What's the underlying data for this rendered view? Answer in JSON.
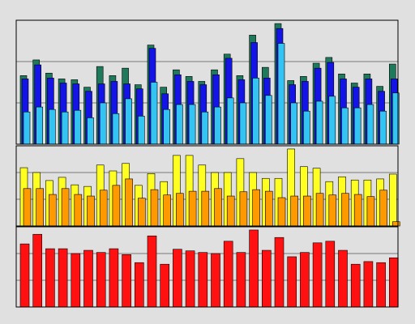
{
  "chart_data": [
    {
      "type": "bar",
      "ylim": [
        0,
        150
      ],
      "yticks": [
        0,
        50,
        100,
        150
      ],
      "grid": true,
      "series": [
        {
          "color": "#1f7a5c",
          "values": [
            83,
            102,
            86,
            79,
            78,
            69,
            94,
            83,
            92,
            72,
            120,
            69,
            90,
            82,
            76,
            90,
            109,
            83,
            132,
            93,
            146,
            77,
            82,
            98,
            105,
            85,
            74,
            85,
            70,
            97
          ]
        },
        {
          "color": "#1414e6",
          "values": [
            79,
            96,
            80,
            74,
            73,
            64,
            73,
            76,
            73,
            67,
            116,
            61,
            84,
            76,
            72,
            84,
            104,
            78,
            123,
            80,
            140,
            72,
            76,
            92,
            99,
            79,
            69,
            79,
            64,
            79
          ]
        },
        {
          "color": "#33c4f4",
          "values": [
            39,
            45,
            42,
            39,
            41,
            32,
            50,
            37,
            55,
            34,
            75,
            42,
            48,
            48,
            39,
            45,
            56,
            50,
            80,
            59,
            122,
            50,
            40,
            52,
            58,
            44,
            44,
            48,
            40,
            62
          ]
        }
      ]
    },
    {
      "type": "bar",
      "ylim": [
        0,
        150
      ],
      "yticks": [
        0,
        50,
        100,
        150
      ],
      "grid": true,
      "series": [
        {
          "color": "#ffff22",
          "values": [
            109,
            100,
            85,
            91,
            77,
            74,
            114,
            103,
            117,
            76,
            98,
            83,
            132,
            132,
            114,
            100,
            100,
            126,
            100,
            89,
            89,
            144,
            111,
            108,
            83,
            92,
            86,
            86,
            88,
            97
          ]
        },
        {
          "color": "#ff9900",
          "values": [
            70,
            70,
            59,
            70,
            59,
            56,
            67,
            76,
            88,
            52,
            68,
            58,
            61,
            65,
            65,
            70,
            56,
            64,
            68,
            65,
            53,
            56,
            56,
            61,
            58,
            61,
            59,
            55,
            67,
            8
          ]
        }
      ]
    },
    {
      "type": "bar",
      "ylim": [
        0,
        150
      ],
      "yticks": [
        0,
        50,
        100,
        150
      ],
      "grid": true,
      "series": [
        {
          "color": "#ff1111",
          "values": [
            118,
            136,
            109,
            109,
            100,
            106,
            102,
            109,
            98,
            83,
            133,
            80,
            108,
            105,
            102,
            100,
            123,
            102,
            144,
            106,
            130,
            94,
            102,
            120,
            123,
            106,
            80,
            85,
            83,
            92
          ]
        }
      ]
    }
  ]
}
